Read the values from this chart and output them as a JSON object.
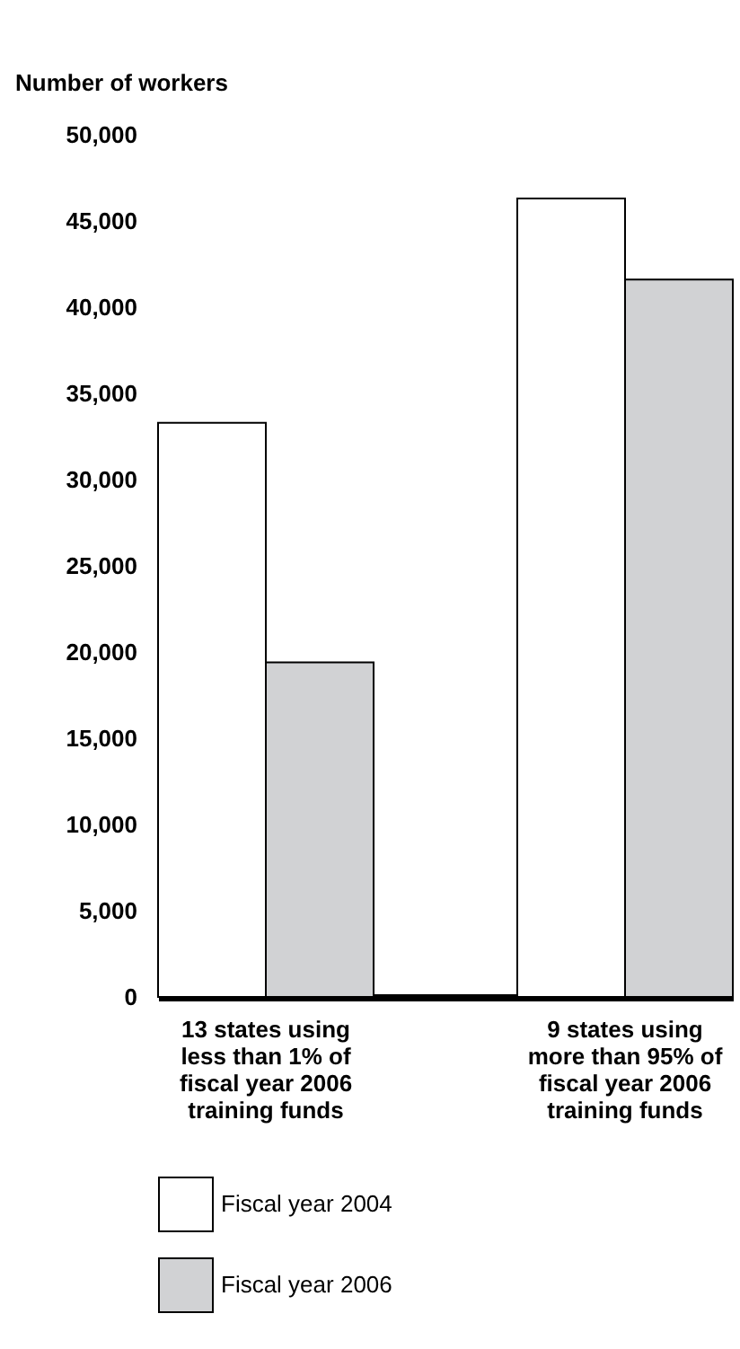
{
  "chart_data": {
    "type": "bar",
    "ylabel": "Number of workers",
    "categories": [
      "13 states using less than 1% of fiscal year 2006 training funds",
      "9 states using more than 95% of fiscal year 2006 training funds"
    ],
    "series": [
      {
        "name": "Fiscal year 2004",
        "color": "#ffffff",
        "values": [
          33300,
          46300
        ]
      },
      {
        "name": "Fiscal year 2006",
        "color": "#d1d2d4",
        "values": [
          19400,
          41600
        ]
      }
    ],
    "ylim": [
      0,
      50000
    ],
    "yticks": [
      0,
      {
        "value": 5000,
        "label": "5,000"
      },
      {
        "value": 10000,
        "label": "10,000"
      },
      {
        "value": 15000,
        "label": "15,000"
      },
      {
        "value": 20000,
        "label": "20,000"
      },
      {
        "value": 25000,
        "label": "25,000"
      },
      {
        "value": 30000,
        "label": "30,000"
      },
      {
        "value": 35000,
        "label": "35,000"
      },
      {
        "value": 40000,
        "label": "40,000"
      },
      {
        "value": 45000,
        "label": "45,000"
      },
      {
        "value": 50000,
        "label": "50,000"
      }
    ],
    "grid": false,
    "legend": "bottom"
  }
}
